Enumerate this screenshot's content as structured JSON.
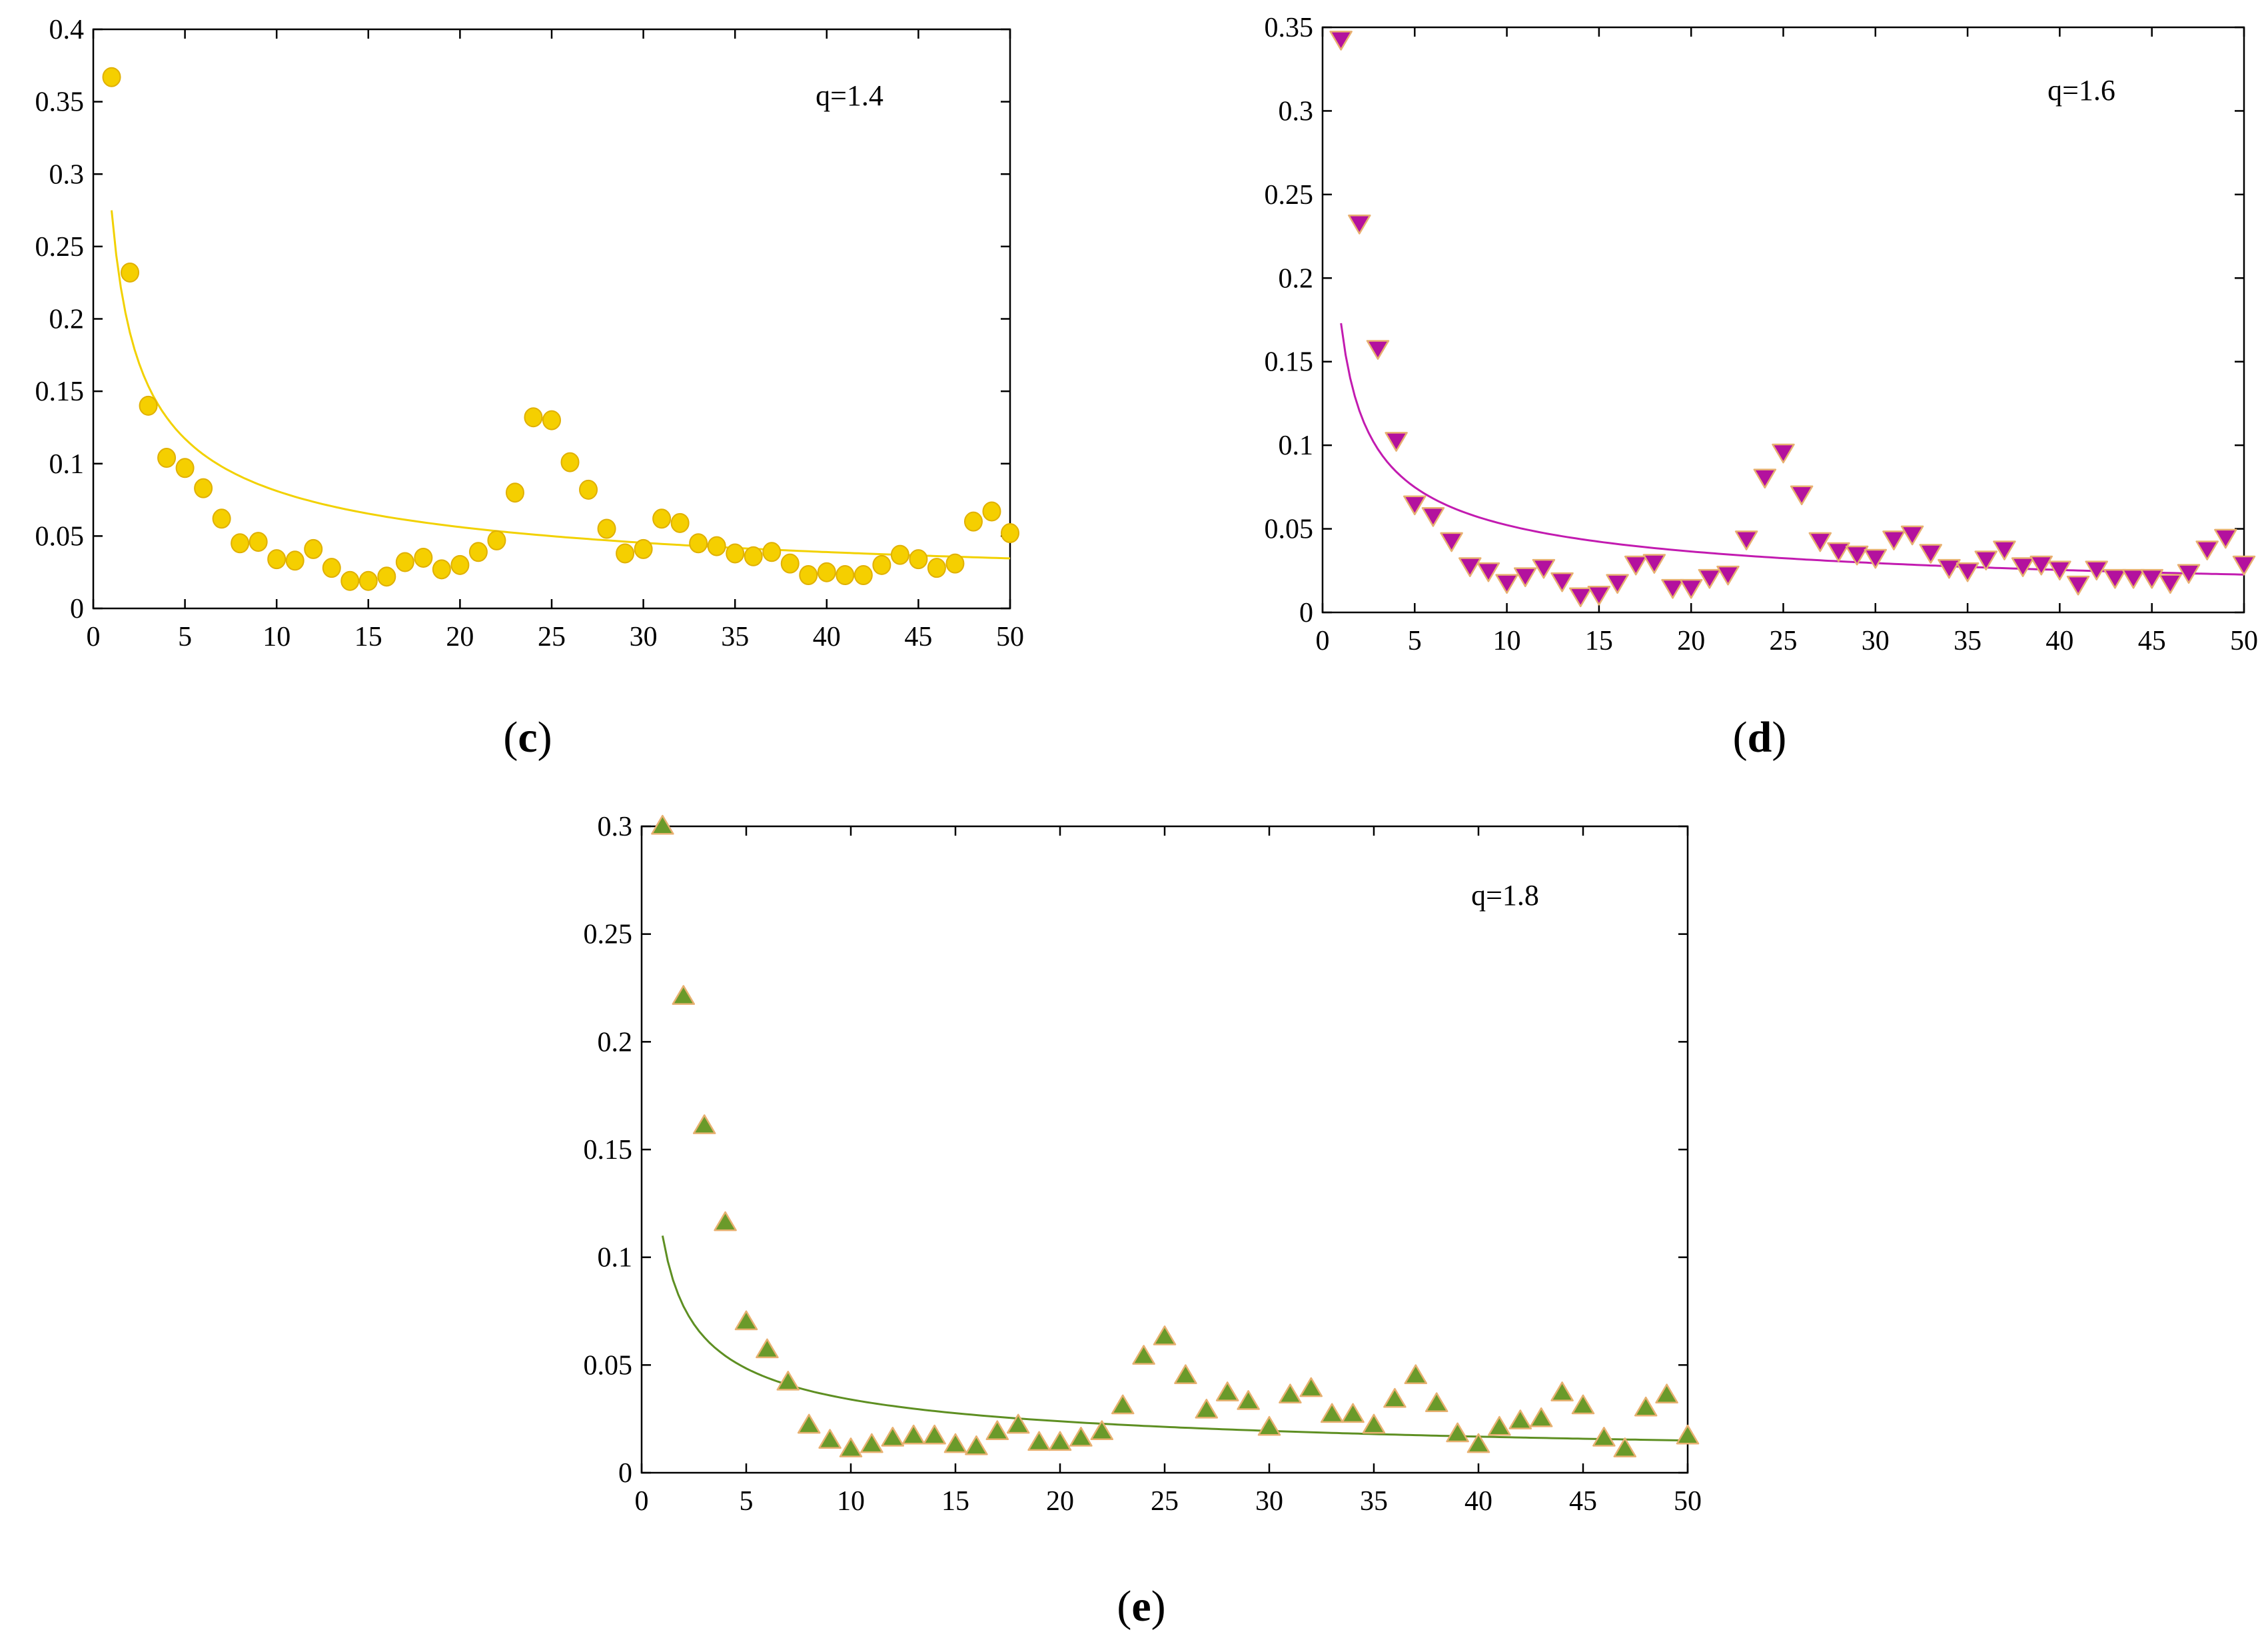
{
  "chart_data": [
    {
      "type": "scatter",
      "panel_label": "(c)",
      "panel_letter": "c",
      "annotation": "q=1.4",
      "xlim": [
        0,
        50
      ],
      "ylim": [
        0,
        0.4
      ],
      "xticks": [
        0,
        5,
        10,
        15,
        20,
        25,
        30,
        35,
        40,
        45,
        50
      ],
      "yticks": [
        0,
        0.05,
        0.1,
        0.15,
        0.2,
        0.25,
        0.3,
        0.35,
        0.4
      ],
      "xtick_labels": [
        "0",
        "5",
        "10",
        "15",
        "20",
        "25",
        "30",
        "35",
        "40",
        "45",
        "50"
      ],
      "ytick_labels": [
        "0",
        "0.05",
        "0.1",
        "0.15",
        "0.2",
        "0.25",
        "0.3",
        "0.35",
        "0.4"
      ],
      "marker": "circle",
      "marker_color": "#f5cf00",
      "line_color": "#f2d100",
      "x": [
        1,
        2,
        3,
        4,
        5,
        6,
        7,
        8,
        9,
        10,
        11,
        12,
        13,
        14,
        15,
        16,
        17,
        18,
        19,
        20,
        21,
        22,
        23,
        24,
        25,
        26,
        27,
        28,
        29,
        30,
        31,
        32,
        33,
        34,
        35,
        36,
        37,
        38,
        39,
        40,
        41,
        42,
        43,
        44,
        45,
        46,
        47,
        48,
        49,
        50
      ],
      "values": [
        0.367,
        0.232,
        0.14,
        0.104,
        0.097,
        0.083,
        0.062,
        0.045,
        0.046,
        0.034,
        0.033,
        0.041,
        0.028,
        0.019,
        0.019,
        0.022,
        0.032,
        0.035,
        0.027,
        0.03,
        0.039,
        0.047,
        0.08,
        0.132,
        0.13,
        0.101,
        0.082,
        0.055,
        0.038,
        0.041,
        0.062,
        0.059,
        0.045,
        0.043,
        0.038,
        0.036,
        0.039,
        0.031,
        0.023,
        0.025,
        0.023,
        0.023,
        0.03,
        0.037,
        0.034,
        0.028,
        0.031,
        0.06,
        0.067,
        0.052
      ],
      "fit_a": 0.275,
      "fit_b": 0.53
    },
    {
      "type": "scatter",
      "panel_label": "(d)",
      "panel_letter": "d",
      "annotation": "q=1.6",
      "xlim": [
        0,
        50
      ],
      "ylim": [
        0,
        0.35
      ],
      "xticks": [
        0,
        5,
        10,
        15,
        20,
        25,
        30,
        35,
        40,
        45,
        50
      ],
      "yticks": [
        0,
        0.05,
        0.1,
        0.15,
        0.2,
        0.25,
        0.3,
        0.35
      ],
      "xtick_labels": [
        "0",
        "5",
        "10",
        "15",
        "20",
        "25",
        "30",
        "35",
        "40",
        "45",
        "50"
      ],
      "ytick_labels": [
        "0",
        "0.05",
        "0.1",
        "0.15",
        "0.2",
        "0.25",
        "0.3",
        "0.35"
      ],
      "marker": "triangle-down",
      "marker_color": "#b3119e",
      "line_color": "#c21bb0",
      "x": [
        1,
        2,
        3,
        4,
        5,
        6,
        7,
        8,
        9,
        10,
        11,
        12,
        13,
        14,
        15,
        16,
        17,
        18,
        19,
        20,
        21,
        22,
        23,
        24,
        25,
        26,
        27,
        28,
        29,
        30,
        31,
        32,
        33,
        34,
        35,
        36,
        37,
        38,
        39,
        40,
        41,
        42,
        43,
        44,
        45,
        46,
        47,
        48,
        49,
        50
      ],
      "values": [
        0.343,
        0.233,
        0.158,
        0.103,
        0.065,
        0.058,
        0.043,
        0.028,
        0.025,
        0.018,
        0.022,
        0.027,
        0.019,
        0.01,
        0.011,
        0.018,
        0.029,
        0.03,
        0.015,
        0.015,
        0.021,
        0.023,
        0.044,
        0.081,
        0.096,
        0.071,
        0.043,
        0.037,
        0.035,
        0.033,
        0.044,
        0.047,
        0.036,
        0.027,
        0.025,
        0.032,
        0.038,
        0.028,
        0.029,
        0.026,
        0.017,
        0.026,
        0.021,
        0.021,
        0.021,
        0.018,
        0.024,
        0.038,
        0.045,
        0.029
      ],
      "fit_a": 0.173,
      "fit_b": 0.52
    },
    {
      "type": "scatter",
      "panel_label": "(e)",
      "panel_letter": "e",
      "annotation": "q=1.8",
      "xlim": [
        0,
        50
      ],
      "ylim": [
        0,
        0.3
      ],
      "xticks": [
        0,
        5,
        10,
        15,
        20,
        25,
        30,
        35,
        40,
        45,
        50
      ],
      "yticks": [
        0,
        0.05,
        0.1,
        0.15,
        0.2,
        0.25,
        0.3
      ],
      "xtick_labels": [
        "0",
        "5",
        "10",
        "15",
        "20",
        "25",
        "30",
        "35",
        "40",
        "45",
        "50"
      ],
      "ytick_labels": [
        "0",
        "0.05",
        "0.1",
        "0.15",
        "0.2",
        "0.25",
        "0.3"
      ],
      "marker": "triangle-up",
      "marker_color": "#6a9a2a",
      "line_color": "#5e8f22",
      "x": [
        1,
        2,
        3,
        4,
        5,
        6,
        7,
        8,
        9,
        10,
        11,
        12,
        13,
        14,
        15,
        16,
        17,
        18,
        19,
        20,
        21,
        22,
        23,
        24,
        25,
        26,
        27,
        28,
        29,
        30,
        31,
        32,
        33,
        34,
        35,
        36,
        37,
        38,
        39,
        40,
        41,
        42,
        43,
        44,
        45,
        46,
        47,
        48,
        49,
        50
      ],
      "values": [
        0.3,
        0.221,
        0.161,
        0.116,
        0.07,
        0.057,
        0.042,
        0.022,
        0.015,
        0.011,
        0.013,
        0.016,
        0.017,
        0.017,
        0.013,
        0.012,
        0.019,
        0.022,
        0.014,
        0.014,
        0.016,
        0.019,
        0.031,
        0.054,
        0.063,
        0.045,
        0.029,
        0.037,
        0.033,
        0.021,
        0.036,
        0.039,
        0.027,
        0.027,
        0.022,
        0.034,
        0.045,
        0.032,
        0.018,
        0.013,
        0.021,
        0.024,
        0.025,
        0.037,
        0.031,
        0.016,
        0.011,
        0.03,
        0.036,
        0.017
      ],
      "fit_a": 0.11,
      "fit_b": 0.51
    }
  ]
}
